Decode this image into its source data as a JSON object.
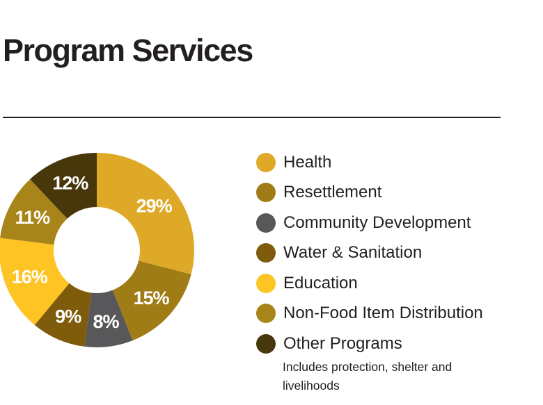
{
  "title": "Program Services",
  "chart_data": {
    "type": "pie",
    "style": "donut",
    "title": "Program Services",
    "start": "top, clockwise",
    "categories": [
      "Health",
      "Resettlement",
      "Community Development",
      "Water & Sanitation",
      "Education",
      "Non-Food Item Distribution",
      "Other Programs"
    ],
    "values": [
      29,
      15,
      8,
      9,
      16,
      11,
      12
    ],
    "value_labels": [
      "29%",
      "15%",
      "8%",
      "9%",
      "16%",
      "11%",
      "12%"
    ],
    "colors": [
      "#dea926",
      "#a07c17",
      "#58585a",
      "#7e5c0b",
      "#fdc424",
      "#a88519",
      "#49370c"
    ],
    "legend_placement": "right",
    "legend": [
      {
        "label": "Health",
        "color": "#dea926"
      },
      {
        "label": "Resettlement",
        "color": "#a07c17"
      },
      {
        "label": "Community Development",
        "color": "#58585a"
      },
      {
        "label": "Water & Sanitation",
        "color": "#7e5c0b"
      },
      {
        "label": "Education",
        "color": "#fdc424"
      },
      {
        "label": "Non-Food Item Distribution",
        "color": "#a88519"
      },
      {
        "label": "Other Programs",
        "color": "#49370c",
        "note": "Includes protection, shelter and livelihoods"
      }
    ]
  }
}
